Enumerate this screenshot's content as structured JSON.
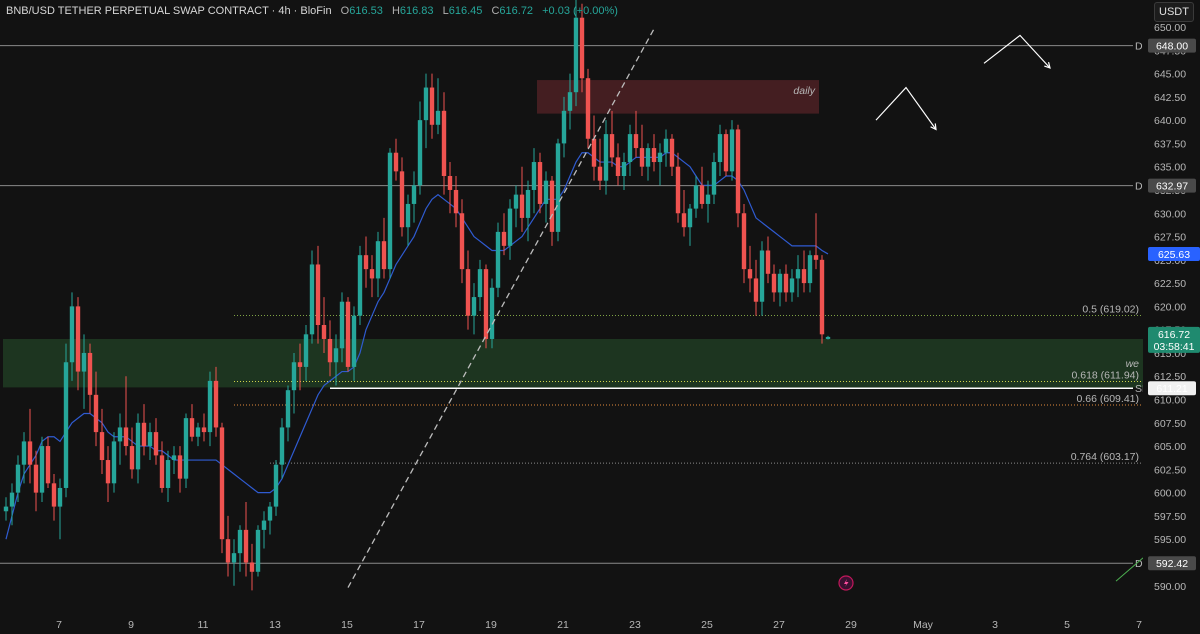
{
  "header": {
    "symbol_title": "BNB/USD TETHER PERPETUAL SWAP CONTRACT · 4h · BloFin",
    "ohlc": [
      {
        "k": "O",
        "v": "616.53"
      },
      {
        "k": "H",
        "v": "616.83"
      },
      {
        "k": "L",
        "v": "616.45"
      },
      {
        "k": "C",
        "v": "616.72"
      }
    ],
    "change": "+0.03 (+0.00%)",
    "currency": "USDT"
  },
  "chart_data": {
    "type": "candlestick",
    "x_tick_labels": [
      "7",
      "9",
      "11",
      "13",
      "15",
      "17",
      "19",
      "21",
      "23",
      "25",
      "27",
      "29",
      "May",
      "3",
      "5",
      "7"
    ],
    "x_tick_index": [
      4,
      16,
      28,
      40,
      52,
      64,
      76,
      88,
      100,
      112,
      124,
      136,
      148,
      160,
      172,
      184
    ],
    "y_ticks": [
      590.0,
      592.5,
      595.0,
      597.5,
      600.0,
      602.5,
      605.0,
      607.5,
      610.0,
      612.5,
      615.0,
      617.5,
      620.0,
      622.5,
      625.0,
      627.5,
      630.0,
      632.5,
      635.0,
      637.5,
      640.0,
      642.5,
      645.0,
      647.5,
      650.0
    ],
    "ylim": [
      588.9,
      652.9
    ],
    "candles": [
      [
        598.0,
        599.5,
        597.0,
        598.5
      ],
      [
        598.5,
        601.0,
        596.5,
        600.0
      ],
      [
        600.0,
        604.0,
        599.0,
        603.0
      ],
      [
        603.0,
        606.5,
        601.0,
        605.5
      ],
      [
        605.5,
        609.0,
        601.0,
        603.0
      ],
      [
        603.0,
        604.5,
        598.0,
        600.0
      ],
      [
        600.0,
        606.0,
        599.0,
        605.0
      ],
      [
        605.0,
        606.0,
        600.5,
        601.0
      ],
      [
        601.0,
        602.0,
        597.0,
        598.5
      ],
      [
        598.5,
        601.5,
        595.0,
        600.5
      ],
      [
        600.5,
        616.0,
        599.5,
        614.0
      ],
      [
        614.0,
        621.5,
        612.0,
        620.0
      ],
      [
        620.0,
        621.0,
        611.0,
        613.0
      ],
      [
        613.0,
        617.0,
        609.0,
        615.0
      ],
      [
        615.0,
        616.0,
        608.5,
        610.5
      ],
      [
        610.5,
        613.0,
        605.0,
        606.5
      ],
      [
        606.5,
        609.0,
        602.0,
        603.5
      ],
      [
        603.5,
        605.0,
        599.0,
        601.0
      ],
      [
        601.0,
        606.5,
        600.0,
        605.5
      ],
      [
        605.5,
        608.5,
        603.0,
        607.0
      ],
      [
        607.0,
        612.5,
        604.0,
        605.0
      ],
      [
        605.0,
        607.0,
        601.5,
        602.5
      ],
      [
        602.5,
        608.5,
        601.0,
        607.5
      ],
      [
        607.5,
        609.5,
        604.0,
        605.0
      ],
      [
        605.0,
        607.5,
        603.5,
        606.5
      ],
      [
        606.5,
        608.0,
        603.0,
        604.0
      ],
      [
        604.0,
        605.5,
        600.0,
        600.5
      ],
      [
        600.5,
        604.5,
        599.0,
        603.5
      ],
      [
        603.5,
        605.0,
        602.0,
        604.0
      ],
      [
        604.0,
        605.0,
        600.0,
        601.5
      ],
      [
        601.5,
        608.5,
        600.5,
        608.0
      ],
      [
        608.0,
        609.5,
        605.5,
        606.0
      ],
      [
        606.0,
        607.5,
        605.0,
        607.0
      ],
      [
        607.0,
        608.5,
        605.5,
        606.5
      ],
      [
        606.5,
        613.0,
        605.0,
        612.0
      ],
      [
        612.0,
        613.5,
        606.0,
        607.0
      ],
      [
        607.0,
        607.5,
        593.5,
        595.0
      ],
      [
        595.0,
        597.5,
        591.0,
        592.5
      ],
      [
        592.5,
        595.0,
        590.0,
        593.5
      ],
      [
        593.5,
        596.5,
        591.5,
        596.0
      ],
      [
        596.0,
        599.0,
        591.0,
        592.5
      ],
      [
        592.5,
        594.5,
        589.5,
        591.5
      ],
      [
        591.5,
        596.5,
        591.0,
        596.0
      ],
      [
        596.0,
        598.0,
        594.0,
        597.0
      ],
      [
        597.0,
        599.0,
        595.5,
        598.5
      ],
      [
        598.5,
        603.5,
        597.5,
        603.0
      ],
      [
        603.0,
        608.0,
        601.5,
        607.0
      ],
      [
        607.0,
        611.5,
        605.5,
        611.0
      ],
      [
        611.0,
        615.0,
        608.5,
        614.0
      ],
      [
        614.0,
        616.0,
        611.0,
        613.5
      ],
      [
        613.5,
        618.0,
        612.0,
        617.0
      ],
      [
        617.0,
        626.0,
        616.0,
        624.5
      ],
      [
        624.5,
        626.5,
        616.0,
        618.0
      ],
      [
        618.0,
        621.0,
        615.0,
        616.5
      ],
      [
        616.5,
        618.5,
        612.5,
        614.0
      ],
      [
        614.0,
        617.0,
        611.5,
        615.5
      ],
      [
        615.5,
        621.5,
        614.0,
        620.5
      ],
      [
        620.5,
        621.0,
        613.0,
        613.5
      ],
      [
        613.5,
        620.0,
        612.0,
        619.0
      ],
      [
        619.0,
        626.5,
        618.0,
        625.5
      ],
      [
        625.5,
        627.5,
        622.0,
        624.0
      ],
      [
        624.0,
        625.5,
        621.0,
        623.0
      ],
      [
        623.0,
        628.0,
        621.0,
        627.0
      ],
      [
        627.0,
        629.5,
        623.0,
        624.0
      ],
      [
        624.0,
        637.0,
        623.0,
        636.5
      ],
      [
        636.5,
        638.0,
        633.5,
        634.5
      ],
      [
        634.5,
        636.0,
        627.5,
        628.5
      ],
      [
        628.5,
        632.0,
        626.5,
        631.0
      ],
      [
        631.0,
        634.5,
        629.0,
        633.0
      ],
      [
        633.0,
        642.0,
        632.0,
        640.0
      ],
      [
        640.0,
        645.0,
        637.0,
        643.5
      ],
      [
        643.5,
        645.0,
        638.0,
        639.5
      ],
      [
        639.5,
        644.5,
        638.5,
        641.0
      ],
      [
        641.0,
        643.0,
        632.0,
        634.0
      ],
      [
        634.0,
        635.5,
        630.0,
        632.5
      ],
      [
        632.5,
        634.0,
        628.5,
        630.0
      ],
      [
        630.0,
        631.5,
        622.5,
        624.0
      ],
      [
        624.0,
        626.0,
        617.5,
        619.0
      ],
      [
        619.0,
        622.5,
        617.0,
        621.0
      ],
      [
        621.0,
        625.0,
        619.5,
        624.0
      ],
      [
        624.0,
        624.5,
        615.5,
        616.5
      ],
      [
        616.5,
        623.0,
        615.5,
        622.0
      ],
      [
        622.0,
        629.0,
        621.0,
        628.0
      ],
      [
        628.0,
        630.0,
        625.5,
        626.5
      ],
      [
        626.5,
        631.5,
        625.0,
        630.5
      ],
      [
        630.5,
        633.0,
        628.5,
        632.0
      ],
      [
        632.0,
        635.0,
        628.0,
        629.5
      ],
      [
        629.5,
        633.5,
        627.0,
        632.5
      ],
      [
        632.5,
        637.0,
        630.0,
        635.5
      ],
      [
        635.5,
        636.5,
        630.0,
        631.0
      ],
      [
        631.0,
        634.5,
        629.0,
        633.5
      ],
      [
        633.5,
        634.0,
        626.5,
        628.0
      ],
      [
        628.0,
        638.0,
        627.0,
        637.5
      ],
      [
        637.5,
        642.5,
        636.0,
        641.0
      ],
      [
        641.0,
        645.0,
        639.0,
        643.0
      ],
      [
        643.0,
        655.0,
        641.5,
        651.0
      ],
      [
        651.0,
        652.5,
        643.0,
        644.5
      ],
      [
        644.5,
        645.5,
        637.0,
        638.0
      ],
      [
        638.0,
        640.5,
        633.5,
        635.0
      ],
      [
        635.0,
        638.0,
        632.5,
        633.5
      ],
      [
        633.5,
        640.0,
        632.0,
        638.5
      ],
      [
        638.5,
        641.0,
        635.0,
        636.0
      ],
      [
        636.0,
        637.5,
        633.0,
        634.0
      ],
      [
        634.0,
        636.5,
        632.5,
        635.5
      ],
      [
        635.5,
        639.5,
        634.0,
        638.5
      ],
      [
        638.5,
        641.0,
        636.0,
        637.0
      ],
      [
        637.0,
        639.5,
        634.0,
        635.0
      ],
      [
        635.0,
        637.5,
        633.5,
        637.0
      ],
      [
        637.0,
        638.5,
        634.5,
        635.5
      ],
      [
        635.5,
        637.5,
        633.0,
        636.5
      ],
      [
        636.5,
        639.0,
        635.0,
        638.0
      ],
      [
        638.0,
        638.5,
        634.0,
        635.0
      ],
      [
        635.0,
        636.5,
        629.0,
        630.0
      ],
      [
        630.0,
        632.5,
        627.5,
        628.5
      ],
      [
        628.5,
        631.0,
        626.5,
        630.5
      ],
      [
        630.5,
        634.0,
        629.5,
        633.0
      ],
      [
        633.0,
        635.0,
        630.5,
        631.0
      ],
      [
        631.0,
        633.5,
        629.0,
        632.0
      ],
      [
        632.0,
        636.5,
        631.0,
        635.5
      ],
      [
        635.5,
        639.5,
        634.0,
        638.5
      ],
      [
        638.5,
        639.0,
        634.0,
        634.5
      ],
      [
        634.5,
        640.0,
        633.5,
        639.0
      ],
      [
        639.0,
        639.5,
        628.5,
        630.0
      ],
      [
        630.0,
        631.0,
        622.5,
        624.0
      ],
      [
        624.0,
        626.5,
        621.5,
        623.0
      ],
      [
        623.0,
        625.0,
        619.0,
        620.5
      ],
      [
        620.5,
        627.0,
        619.0,
        626.0
      ],
      [
        626.0,
        627.5,
        622.5,
        623.5
      ],
      [
        623.5,
        624.5,
        620.5,
        621.5
      ],
      [
        621.5,
        624.0,
        620.0,
        623.5
      ],
      [
        623.5,
        624.5,
        620.5,
        621.5
      ],
      [
        621.5,
        624.0,
        620.5,
        623.0
      ],
      [
        623.0,
        625.5,
        621.0,
        624.0
      ],
      [
        624.0,
        626.0,
        621.5,
        622.5
      ],
      [
        622.5,
        626.0,
        621.5,
        625.5
      ],
      [
        625.5,
        630.0,
        624.0,
        625.0
      ],
      [
        625.0,
        625.5,
        616.0,
        617.0
      ],
      [
        616.5,
        616.83,
        616.45,
        616.72
      ]
    ],
    "moving_average": {
      "name": "",
      "start_index": 0,
      "values": [
        595.0,
        597.5,
        600.0,
        602.0,
        603.0,
        604.0,
        605.5,
        606.0,
        606.0,
        605.5,
        606.5,
        607.5,
        608.0,
        608.5,
        608.5,
        608.0,
        607.5,
        606.5,
        606.0,
        606.0,
        606.0,
        605.5,
        605.0,
        605.0,
        605.0,
        604.5,
        604.5,
        604.0,
        603.5,
        603.5,
        603.5,
        603.5,
        603.5,
        603.5,
        603.5,
        603.5,
        603.0,
        602.5,
        602.0,
        601.5,
        601.0,
        600.5,
        600.0,
        600.0,
        600.0,
        600.5,
        601.5,
        603.0,
        604.5,
        606.0,
        607.5,
        609.0,
        610.5,
        611.5,
        612.0,
        612.5,
        613.0,
        613.0,
        613.5,
        615.0,
        617.5,
        619.0,
        620.5,
        621.5,
        623.0,
        624.5,
        625.5,
        626.5,
        627.5,
        629.0,
        630.5,
        631.5,
        632.0,
        631.5,
        631.0,
        630.5,
        629.5,
        628.5,
        627.5,
        627.0,
        626.5,
        626.0,
        626.0,
        626.0,
        626.5,
        627.0,
        627.5,
        628.5,
        629.5,
        630.5,
        631.5,
        631.5,
        631.5,
        632.5,
        634.0,
        635.5,
        636.5,
        636.5,
        636.0,
        635.5,
        635.5,
        635.5,
        635.0,
        635.0,
        635.5,
        636.0,
        636.0,
        636.0,
        636.0,
        636.0,
        636.5,
        636.5,
        636.0,
        635.5,
        635.0,
        634.0,
        633.0,
        633.0,
        633.0,
        633.5,
        634.0,
        634.0,
        633.5,
        632.5,
        631.0,
        629.5,
        629.0,
        628.5,
        628.0,
        627.5,
        627.0,
        626.5,
        626.5,
        626.5,
        626.5,
        626.5,
        626.0,
        625.63
      ],
      "color": "#2f5bd1"
    },
    "horizontal_lines": [
      {
        "price": 648.0,
        "label": "648.00",
        "marker": "D",
        "color": "#8a8a8a",
        "style": "solid"
      },
      {
        "price": 632.97,
        "label": "632.97",
        "marker": "D",
        "color": "#8a8a8a",
        "style": "solid"
      },
      {
        "price": 592.42,
        "label": "592.42",
        "marker": "D",
        "color": "#8a8a8a",
        "style": "solid"
      },
      {
        "price": 611.21,
        "label": "611.21",
        "marker": "SFP",
        "color": "#ffffff",
        "style": "solid"
      }
    ],
    "fib_levels": [
      {
        "price": 619.02,
        "text": "0.5 (619.02)",
        "color": "#7fa344"
      },
      {
        "price": 611.94,
        "text": "0.618 (611.94)",
        "color": "#cfd24a"
      },
      {
        "price": 609.41,
        "text": "0.66 (609.41)",
        "color": "#e08a3c"
      },
      {
        "price": 603.17,
        "text": "0.764 (603.17)",
        "color": "#8a8a8a"
      }
    ],
    "zones": [
      {
        "name": "daily",
        "label": "daily",
        "top": 644.3,
        "bottom": 640.7,
        "from_index": 89,
        "to_index": 135,
        "color": "#4a2023"
      },
      {
        "name": "support",
        "label": "we",
        "top": 616.5,
        "bottom": 611.3,
        "from_index": 0,
        "to_index": 190,
        "color": "#1f3a22"
      }
    ],
    "price_tags": [
      {
        "label": "625.63",
        "price": 625.63,
        "bg": "#2962ff"
      },
      {
        "label": "616.72",
        "sub": "03:58:41",
        "price": 616.72,
        "bg": "#1f8a6f"
      }
    ],
    "annotations": {
      "dashed_trend": {
        "from": [
          57,
          589.8
        ],
        "to": [
          108,
          649.8
        ]
      },
      "arrows": [
        {
          "name": "arrow-top-right",
          "points": [
            [
              163,
              646.1
            ],
            [
              169,
              649.1
            ],
            [
              174,
              645.6
            ]
          ]
        },
        {
          "name": "arrow-down-left",
          "points": [
            [
              145,
              640.0
            ],
            [
              150,
              643.5
            ],
            [
              155,
              639.0
            ]
          ]
        },
        {
          "name": "arrow-bottom-right",
          "points": [
            [
              244,
              612.5
            ],
            [
              250,
              609.5
            ],
            [
              253,
              614.5
            ]
          ]
        }
      ],
      "green_line": {
        "from": [
          185,
          590.5
        ],
        "to": [
          285,
          593.0
        ]
      }
    }
  }
}
